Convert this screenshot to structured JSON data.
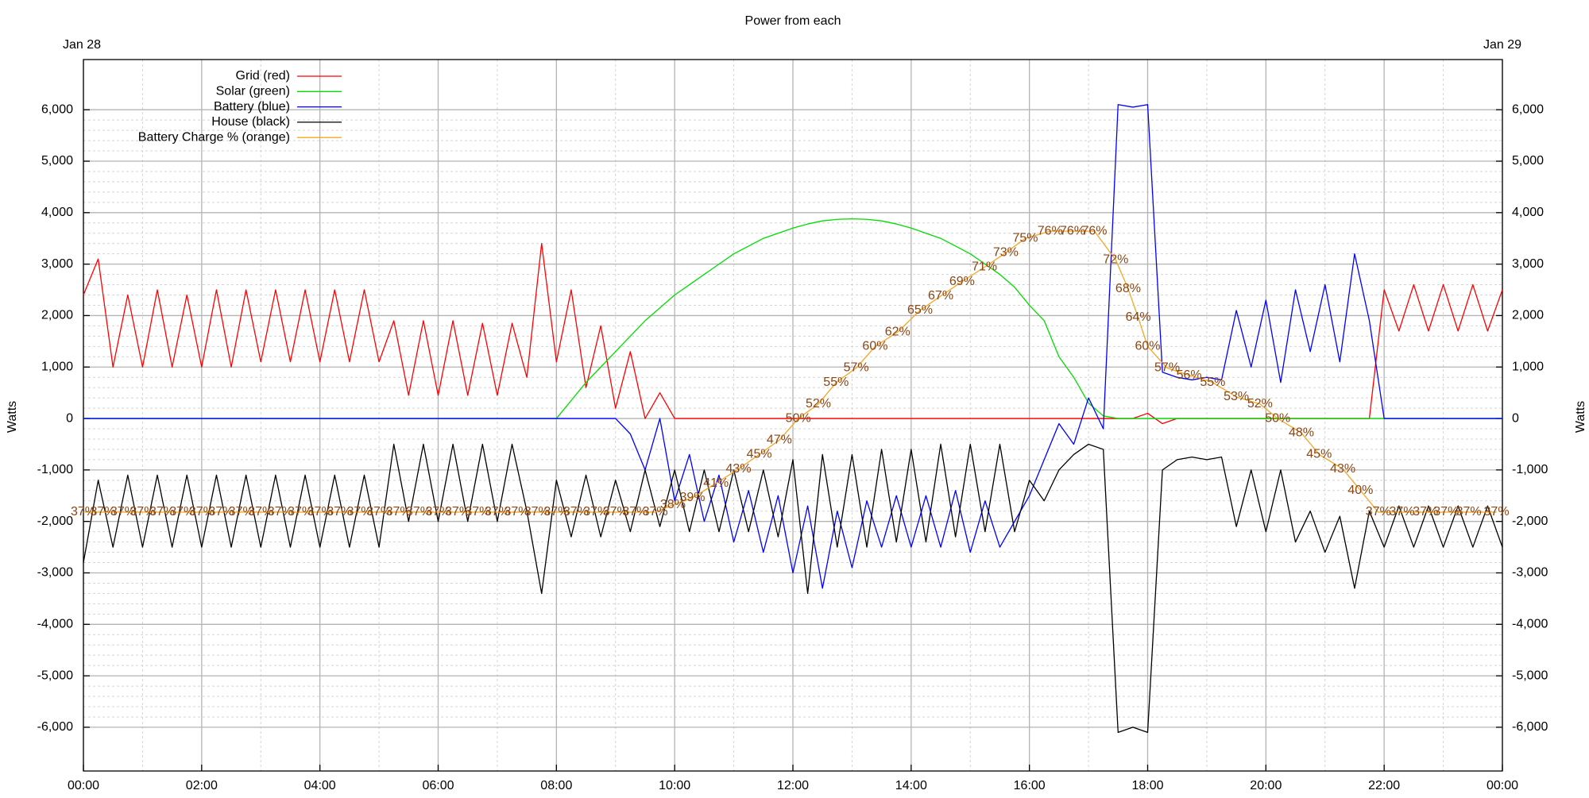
{
  "chart_data": {
    "type": "line",
    "title": "Power from each",
    "x_start_label": "Jan 28",
    "x_end_label": "Jan 29",
    "ylabel": "Watts",
    "xlim": [
      0,
      24
    ],
    "ylim": [
      -6850,
      6975
    ],
    "y2lim": [
      1.07,
      99.82
    ],
    "grid": true,
    "minor_grid": true,
    "legend": "upper left",
    "xticks": [
      {
        "value": 0,
        "label": "00:00"
      },
      {
        "value": 2,
        "label": "02:00"
      },
      {
        "value": 4,
        "label": "04:00"
      },
      {
        "value": 6,
        "label": "06:00"
      },
      {
        "value": 8,
        "label": "08:00"
      },
      {
        "value": 10,
        "label": "10:00"
      },
      {
        "value": 12,
        "label": "12:00"
      },
      {
        "value": 14,
        "label": "14:00"
      },
      {
        "value": 16,
        "label": "16:00"
      },
      {
        "value": 18,
        "label": "18:00"
      },
      {
        "value": 20,
        "label": "20:00"
      },
      {
        "value": 22,
        "label": "22:00"
      },
      {
        "value": 24,
        "label": "00:00"
      }
    ],
    "yticks": [
      {
        "value": -6000,
        "label": "-6,000"
      },
      {
        "value": -5000,
        "label": "-5,000"
      },
      {
        "value": -4000,
        "label": "-4,000"
      },
      {
        "value": -3000,
        "label": "-3,000"
      },
      {
        "value": -2000,
        "label": "-2,000"
      },
      {
        "value": -1000,
        "label": "-1,000"
      },
      0,
      {
        "value": 1000,
        "label": "1,000"
      },
      {
        "value": 2000,
        "label": "2,000"
      },
      {
        "value": 3000,
        "label": "3,000"
      },
      {
        "value": 4000,
        "label": "4,000"
      },
      {
        "value": 5000,
        "label": "5,000"
      },
      {
        "value": 6000,
        "label": "6,000"
      }
    ],
    "x": [
      0,
      0.25,
      0.5,
      0.75,
      1,
      1.25,
      1.5,
      1.75,
      2,
      2.25,
      2.5,
      2.75,
      3,
      3.25,
      3.5,
      3.75,
      4,
      4.25,
      4.5,
      4.75,
      5,
      5.25,
      5.5,
      5.75,
      6,
      6.25,
      6.5,
      6.75,
      7,
      7.25,
      7.5,
      7.75,
      8,
      8.25,
      8.5,
      8.75,
      9,
      9.25,
      9.5,
      9.75,
      10,
      10.25,
      10.5,
      10.75,
      11,
      11.25,
      11.5,
      11.75,
      12,
      12.25,
      12.5,
      12.75,
      13,
      13.25,
      13.5,
      13.75,
      14,
      14.25,
      14.5,
      14.75,
      15,
      15.25,
      15.5,
      15.75,
      16,
      16.25,
      16.5,
      16.75,
      17,
      17.25,
      17.5,
      17.75,
      18,
      18.25,
      18.5,
      18.75,
      19,
      19.25,
      19.5,
      19.75,
      20,
      20.25,
      20.5,
      20.75,
      21,
      21.25,
      21.5,
      21.75,
      22,
      22.25,
      22.5,
      22.75,
      23,
      23.25,
      23.5,
      23.75,
      24
    ],
    "series": [
      {
        "name": "Grid (red)",
        "color": "#ff0000",
        "values": [
          2400,
          3100,
          1000,
          2400,
          1000,
          2500,
          1000,
          2400,
          1000,
          2500,
          1000,
          2500,
          1100,
          2500,
          1100,
          2500,
          1100,
          2500,
          1100,
          2500,
          1100,
          1900,
          450,
          1900,
          450,
          1900,
          450,
          1850,
          450,
          1850,
          800,
          3400,
          1100,
          2500,
          600,
          1800,
          200,
          1300,
          0,
          500,
          0,
          0,
          0,
          0,
          0,
          0,
          0,
          0,
          0,
          0,
          0,
          0,
          0,
          0,
          0,
          0,
          0,
          0,
          0,
          0,
          0,
          0,
          0,
          0,
          0,
          0,
          0,
          0,
          0,
          0,
          0,
          0,
          100,
          -100,
          0,
          0,
          0,
          0,
          0,
          0,
          0,
          0,
          0,
          0,
          0,
          0,
          0,
          0,
          2500,
          1700,
          2600,
          1700,
          2600,
          1700,
          2600,
          1700,
          2500
        ]
      },
      {
        "name": "Solar (green)",
        "color": "#00dd00",
        "values": [
          0,
          0,
          0,
          0,
          0,
          0,
          0,
          0,
          0,
          0,
          0,
          0,
          0,
          0,
          0,
          0,
          0,
          0,
          0,
          0,
          0,
          0,
          0,
          0,
          0,
          0,
          0,
          0,
          0,
          0,
          0,
          0,
          0,
          350,
          700,
          1000,
          1300,
          1600,
          1900,
          2150,
          2400,
          2600,
          2800,
          3000,
          3200,
          3350,
          3500,
          3600,
          3700,
          3780,
          3840,
          3870,
          3880,
          3870,
          3840,
          3780,
          3700,
          3600,
          3500,
          3350,
          3200,
          3000,
          2800,
          2550,
          2200,
          1900,
          1200,
          800,
          300,
          50,
          0,
          0,
          0,
          0,
          0,
          0,
          0,
          0,
          0,
          0,
          0,
          0,
          0,
          0,
          0,
          0,
          0,
          0,
          0,
          0,
          0,
          0,
          0,
          0,
          0,
          0,
          0
        ]
      },
      {
        "name": "Battery (blue)",
        "color": "#0000ff",
        "values": [
          0,
          0,
          0,
          0,
          0,
          0,
          0,
          0,
          0,
          0,
          0,
          0,
          0,
          0,
          0,
          0,
          0,
          0,
          0,
          0,
          0,
          0,
          0,
          0,
          0,
          0,
          0,
          0,
          0,
          0,
          0,
          0,
          0,
          0,
          0,
          0,
          0,
          -300,
          -1000,
          0,
          -1600,
          -700,
          -2000,
          -1100,
          -2400,
          -1400,
          -2600,
          -1500,
          -3000,
          -1700,
          -3300,
          -1800,
          -2900,
          -1600,
          -2500,
          -1500,
          -2500,
          -1500,
          -2500,
          -1400,
          -2600,
          -1600,
          -2500,
          -2000,
          -1500,
          -800,
          -100,
          -500,
          400,
          -200,
          6100,
          6050,
          6100,
          900,
          800,
          750,
          800,
          750,
          2100,
          1000,
          2300,
          700,
          2500,
          1300,
          2600,
          1100,
          3200,
          1900,
          0,
          0,
          0,
          0,
          0,
          0,
          0,
          0,
          0
        ]
      },
      {
        "name": "House (black)",
        "color": "#000000",
        "values": [
          -2800,
          -1200,
          -2500,
          -1100,
          -2500,
          -1100,
          -2500,
          -1100,
          -2500,
          -1100,
          -2500,
          -1100,
          -2500,
          -1100,
          -2500,
          -1100,
          -2500,
          -1100,
          -2500,
          -1100,
          -2500,
          -500,
          -2000,
          -500,
          -2000,
          -500,
          -2000,
          -500,
          -2000,
          -500,
          -1800,
          -3400,
          -1200,
          -2300,
          -1100,
          -2300,
          -1200,
          -2200,
          -1000,
          -2100,
          -1000,
          -2200,
          -1000,
          -2200,
          -1000,
          -2200,
          -1000,
          -2300,
          -800,
          -3400,
          -700,
          -2500,
          -700,
          -2500,
          -600,
          -2400,
          -600,
          -2400,
          -500,
          -2300,
          -500,
          -2200,
          -500,
          -2200,
          -1200,
          -1600,
          -1000,
          -700,
          -500,
          -600,
          -6100,
          -6000,
          -6100,
          -1000,
          -800,
          -750,
          -800,
          -750,
          -2100,
          -1000,
          -2200,
          -1000,
          -2400,
          -1800,
          -2600,
          -1900,
          -3300,
          -1800,
          -2500,
          -1700,
          -2500,
          -1700,
          -2500,
          -1700,
          -2500,
          -1700,
          -2500
        ]
      },
      {
        "name": "Battery Charge % (orange)",
        "color": "#f5a623",
        "label_color": "#8b4513",
        "axis": "y2",
        "x": [
          0,
          0.33,
          0.67,
          1,
          1.33,
          1.67,
          2,
          2.33,
          2.67,
          3,
          3.33,
          3.67,
          4,
          4.33,
          4.67,
          5,
          5.33,
          5.67,
          6,
          6.33,
          6.67,
          7,
          7.33,
          7.67,
          8,
          8.33,
          8.67,
          9,
          9.33,
          9.67,
          9.97,
          10.3,
          10.7,
          11.08,
          11.43,
          11.77,
          12.09,
          12.43,
          12.73,
          13.07,
          13.39,
          13.77,
          14.15,
          14.5,
          14.86,
          15.24,
          15.6,
          15.93,
          16.35,
          16.73,
          17.1,
          17.46,
          17.67,
          17.84,
          18,
          18.33,
          18.7,
          19.1,
          19.5,
          19.9,
          20.2,
          20.6,
          20.9,
          21.3,
          21.6,
          21.9,
          22.3,
          22.7,
          23.05,
          23.43,
          23.9
        ],
        "values": [
          37,
          37,
          37,
          37,
          37,
          37,
          37,
          37,
          37,
          37,
          37,
          37,
          37,
          37,
          37,
          37,
          37,
          37,
          37,
          37,
          37,
          37,
          37,
          37,
          37,
          37,
          37,
          37,
          37,
          37,
          38,
          39,
          41,
          43,
          45,
          47,
          50,
          52,
          55,
          57,
          60,
          62,
          65,
          67,
          69,
          71,
          73,
          75,
          76,
          76,
          76,
          72,
          68,
          64,
          60,
          57,
          56,
          55,
          53,
          52,
          50,
          48,
          45,
          43,
          40,
          37,
          37,
          37,
          37,
          37,
          37
        ],
        "value_labels": [
          "37%",
          "37%",
          "37%",
          "37%",
          "37%",
          "37%",
          "37%",
          "37%",
          "37%",
          "37%",
          "37%",
          "37%",
          "37%",
          "37%",
          "37%",
          "37%",
          "37%",
          "37%",
          "37%",
          "37%",
          "37%",
          "37%",
          "37%",
          "37%",
          "37%",
          "37%",
          "37%",
          "37%",
          "37%",
          "37%",
          "38%",
          "39%",
          "41%",
          "43%",
          "45%",
          "47%",
          "50%",
          "52%",
          "55%",
          "57%",
          "60%",
          "62%",
          "65%",
          "67%",
          "69%",
          "71%",
          "73%",
          "75%",
          "76%",
          "76%",
          "76%",
          "72%",
          "68%",
          "64%",
          "60%",
          "57%",
          "56%",
          "55%",
          "53%",
          "52%",
          "50%",
          "48%",
          "45%",
          "43%",
          "40%",
          "37%",
          "37%",
          "37%",
          "37%",
          "37%",
          "37%"
        ]
      }
    ]
  }
}
